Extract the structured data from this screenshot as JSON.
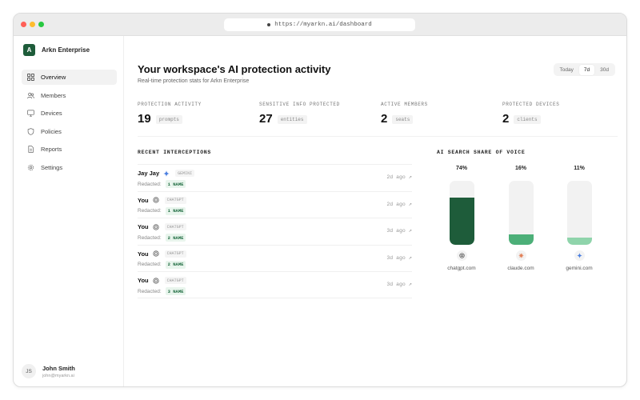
{
  "browser": {
    "url": "https://myarkn.ai/dashboard"
  },
  "sidebar": {
    "brand_initial": "A",
    "brand_name": "Arkn Enterprise",
    "items": [
      {
        "label": "Overview",
        "icon": "grid-icon",
        "active": true
      },
      {
        "label": "Members",
        "icon": "users-icon",
        "active": false
      },
      {
        "label": "Devices",
        "icon": "monitor-icon",
        "active": false
      },
      {
        "label": "Policies",
        "icon": "shield-icon",
        "active": false
      },
      {
        "label": "Reports",
        "icon": "document-icon",
        "active": false
      },
      {
        "label": "Settings",
        "icon": "gear-icon",
        "active": false
      }
    ],
    "user": {
      "initials": "JS",
      "name": "John Smith",
      "email": "john@myarkn.ai"
    }
  },
  "header": {
    "title": "Your workspace's AI protection activity",
    "subtitle": "Real-time protection stats for Arkn Enterprise",
    "ranges": [
      "Today",
      "7d",
      "30d"
    ],
    "active_range": "7d"
  },
  "stats": [
    {
      "label": "PROTECTION ACTIVITY",
      "value": "19",
      "unit": "prompts"
    },
    {
      "label": "SENSITIVE INFO PROTECTED",
      "value": "27",
      "unit": "entities"
    },
    {
      "label": "ACTIVE MEMBERS",
      "value": "2",
      "unit": "seats"
    },
    {
      "label": "PROTECTED DEVICES",
      "value": "2",
      "unit": "clients"
    }
  ],
  "interceptions": {
    "heading": "RECENT INTERCEPTIONS",
    "redacted_label": "Redacted:",
    "rows": [
      {
        "name": "Jay Jay",
        "source": "GEMINI",
        "source_icon": "gemini-icon",
        "redacted": "1 NAME",
        "time": "2d ago"
      },
      {
        "name": "You",
        "source": "CHATGPT",
        "source_icon": "chatgpt-icon",
        "redacted": "1 NAME",
        "time": "2d ago"
      },
      {
        "name": "You",
        "source": "CHATGPT",
        "source_icon": "chatgpt-icon",
        "redacted": "2 NAME",
        "time": "3d ago"
      },
      {
        "name": "You",
        "source": "CHATGPT",
        "source_icon": "chatgpt-icon",
        "redacted": "2 NAME",
        "time": "3d ago"
      },
      {
        "name": "You",
        "source": "CHATGPT",
        "source_icon": "chatgpt-icon",
        "redacted": "3 NAME",
        "time": "3d ago"
      }
    ]
  },
  "share_of_voice": {
    "heading": "AI SEARCH SHARE OF VOICE",
    "colors": [
      "#1e5c3a",
      "#4caf78",
      "#8fd4ab"
    ]
  },
  "chart_data": {
    "type": "bar",
    "title": "AI SEARCH SHARE OF VOICE",
    "categories": [
      "chatgpt.com",
      "claude.com",
      "gemini.com"
    ],
    "values": [
      74,
      16,
      11
    ],
    "value_labels": [
      "74%",
      "16%",
      "11%"
    ],
    "icons": [
      "chatgpt-icon",
      "claude-icon",
      "gemini-icon"
    ],
    "ylim": [
      0,
      100
    ],
    "xlabel": "",
    "ylabel": ""
  }
}
